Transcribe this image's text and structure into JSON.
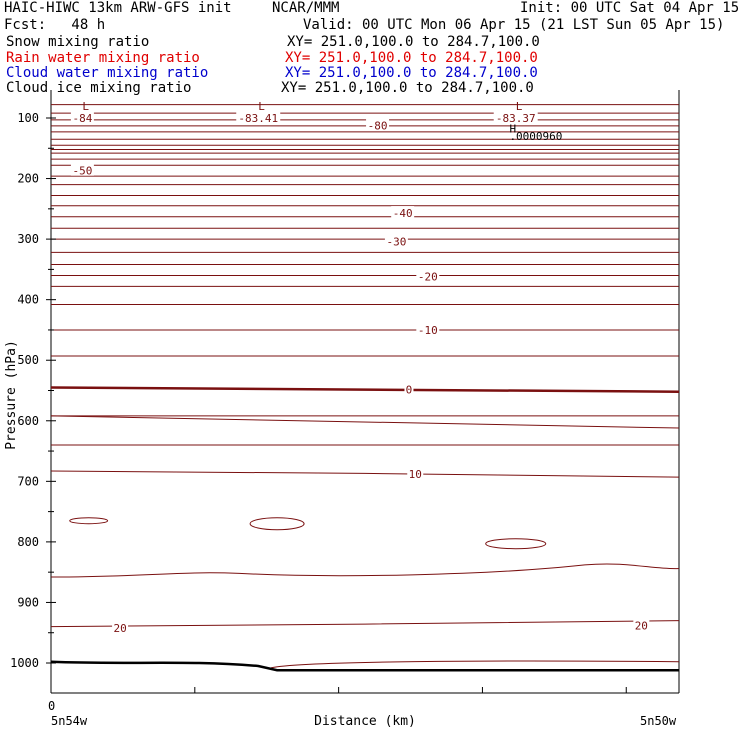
{
  "header": {
    "title_left": "HAIC-HIWC 13km ARW-GFS init",
    "center": "NCAR/MMM",
    "init": "Init: 00 UTC Sat 04 Apr 15",
    "fcst": "Fcst:   48 h",
    "valid": "Valid: 00 UTC Mon 06 Apr 15 (21 LST Sun 05 Apr 15)"
  },
  "legend": [
    {
      "label": "Snow mixing ratio",
      "xy": "XY= 251.0,100.0 to 284.7,100.0",
      "color": "#000000"
    },
    {
      "label": "Rain water mixing ratio",
      "xy": "XY= 251.0,100.0 to 284.7,100.0",
      "color": "#e00000"
    },
    {
      "label": "Cloud water mixing ratio",
      "xy": "XY= 251.0,100.0 to 284.7,100.0",
      "color": "#0000cc"
    },
    {
      "label": "Cloud ice mixing ratio",
      "xy": "XY= 251.0,100.0 to 284.7,100.0",
      "color": "#000000"
    }
  ],
  "chart_data": {
    "type": "line",
    "ylabel": "Pressure (hPa)",
    "xlabel": "Distance (km)",
    "ylim": [
      1050,
      70
    ],
    "yticks": [
      "100",
      "200",
      "300",
      "400",
      "500",
      "600",
      "700",
      "800",
      "900",
      "1000"
    ],
    "xtick_start": "0",
    "x_left_label": "5n54w",
    "x_right_label": "5n50w",
    "contour_color": "#7a1010",
    "contour_labels": [
      {
        "text": "-84",
        "x": 0.05,
        "p": 100
      },
      {
        "text": "-83.41",
        "x": 0.33,
        "p": 100
      },
      {
        "text": "-80",
        "x": 0.52,
        "p": 112
      },
      {
        "text": "-83.37",
        "x": 0.74,
        "p": 100
      },
      {
        "text": "-50",
        "x": 0.05,
        "p": 187
      },
      {
        "text": "-40",
        "x": 0.56,
        "p": 257
      },
      {
        "text": "-30",
        "x": 0.55,
        "p": 304
      },
      {
        "text": "-20",
        "x": 0.6,
        "p": 362
      },
      {
        "text": "-10",
        "x": 0.6,
        "p": 450
      },
      {
        "text": "0",
        "x": 0.57,
        "p": 548
      },
      {
        "text": "10",
        "x": 0.58,
        "p": 688
      },
      {
        "text": "20",
        "x": 0.11,
        "p": 942
      },
      {
        "text": "20",
        "x": 0.94,
        "p": 938
      }
    ],
    "markers": [
      {
        "text": "L",
        "x": 0.05,
        "p": 80
      },
      {
        "text": "L",
        "x": 0.33,
        "p": 80
      },
      {
        "text": "L",
        "x": 0.74,
        "p": 80
      },
      {
        "text": "H",
        "x": 0.73,
        "p": 117
      },
      {
        "text": ".0000960",
        "x": 0.73,
        "p": 130
      }
    ]
  }
}
